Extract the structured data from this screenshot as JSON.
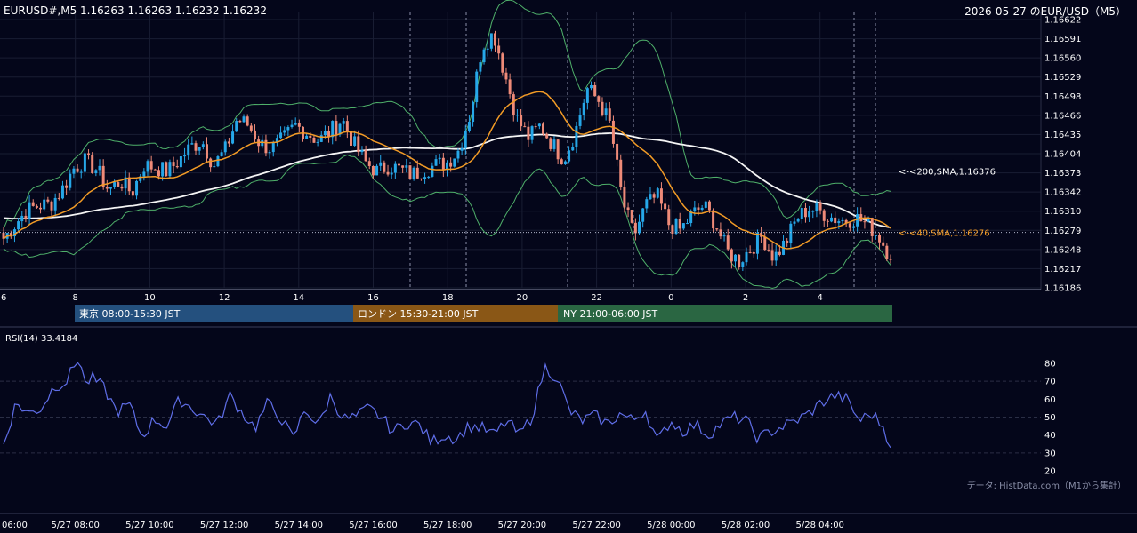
{
  "header": {
    "symbol_info": "EURUSD#,M5 1.16263 1.16263 1.16232 1.16232",
    "title_right": "2026-05-27 のEUR/USD（M5）"
  },
  "colors": {
    "background": "#04061a",
    "bull": "#26a7e8",
    "bear": "#ee8a78",
    "sma40": "#f29b26",
    "sma200": "#f4f4f4",
    "bollinger": "#4fb06a",
    "rsi": "#5f6ee8",
    "session_tokyo": "#24507e",
    "session_london": "#8a5716",
    "session_ny": "#2a6642"
  },
  "price_axis": {
    "labels": [
      "1.16622",
      "1.16591",
      "1.16560",
      "1.16529",
      "1.16498",
      "1.16466",
      "1.16435",
      "1.16404",
      "1.16373",
      "1.16342",
      "1.16310",
      "1.16279",
      "1.16248",
      "1.16217",
      "1.16186"
    ]
  },
  "hour_axis": {
    "labels": [
      "6",
      "8",
      "10",
      "12",
      "14",
      "16",
      "18",
      "20",
      "22",
      "0",
      "2",
      "4"
    ]
  },
  "sessions": [
    {
      "label": "東京 08:00-15:30 JST"
    },
    {
      "label": "ロンドン 15:30-21:00 JST"
    },
    {
      "label": "NY 21:00-06:00 JST"
    }
  ],
  "indicator_labels": {
    "sma200": "<-<200,SMA,1.16376",
    "sma40": "<-<40,SMA,1.16276"
  },
  "rsi": {
    "label": "RSI(14) 33.4184",
    "axis_labels": [
      "80",
      "70",
      "60",
      "50",
      "40",
      "30",
      "20"
    ]
  },
  "source_note": "データ: HistData.com（M1から集計）",
  "time_axis": {
    "labels": [
      "06:00",
      "5/27 08:00",
      "5/27 10:00",
      "5/27 12:00",
      "5/27 14:00",
      "5/27 16:00",
      "5/27 18:00",
      "5/27 20:00",
      "5/27 22:00",
      "5/28 00:00",
      "5/28 02:00",
      "5/28 04:00"
    ]
  },
  "chart_data": {
    "type": "candlestick",
    "timeframe": "M5",
    "y_range": [
      1.16186,
      1.16622
    ],
    "rsi_range": [
      20,
      80
    ],
    "anchors_price": [
      [
        0,
        1.16266
      ],
      [
        1,
        1.1629
      ],
      [
        2,
        1.16312
      ],
      [
        3,
        1.1632
      ],
      [
        4,
        1.16322
      ],
      [
        5,
        1.16345
      ],
      [
        6,
        1.1638
      ],
      [
        7,
        1.16392
      ],
      [
        8,
        1.16378
      ],
      [
        9,
        1.16345
      ],
      [
        10,
        1.1636
      ],
      [
        11,
        1.1634
      ],
      [
        12,
        1.16385
      ],
      [
        13,
        1.16382
      ],
      [
        14,
        1.16375
      ],
      [
        15,
        1.16392
      ],
      [
        16,
        1.16415
      ],
      [
        17,
        1.16425
      ],
      [
        18,
        1.16385
      ],
      [
        19,
        1.1641
      ],
      [
        20,
        1.1646
      ],
      [
        21,
        1.1645
      ],
      [
        22,
        1.1642
      ],
      [
        23,
        1.16412
      ],
      [
        24,
        1.16428
      ],
      [
        25,
        1.1645
      ],
      [
        26,
        1.16438
      ],
      [
        27,
        1.16425
      ],
      [
        28,
        1.1644
      ],
      [
        29,
        1.1646
      ],
      [
        30,
        1.1642
      ],
      [
        31,
        1.1639
      ],
      [
        32,
        1.16375
      ],
      [
        33,
        1.16385
      ],
      [
        34,
        1.16378
      ],
      [
        35,
        1.1637
      ],
      [
        36,
        1.16378
      ],
      [
        37,
        1.16385
      ],
      [
        38,
        1.1639
      ],
      [
        39,
        1.1641
      ],
      [
        40,
        1.1647
      ],
      [
        41,
        1.1658
      ],
      [
        42,
        1.166
      ],
      [
        43,
        1.1653
      ],
      [
        44,
        1.1646
      ],
      [
        45,
        1.1643
      ],
      [
        46,
        1.1645
      ],
      [
        47,
        1.1642
      ],
      [
        48,
        1.16395
      ],
      [
        49,
        1.1644
      ],
      [
        50,
        1.1651
      ],
      [
        51,
        1.1649
      ],
      [
        52,
        1.1645
      ],
      [
        53,
        1.1633
      ],
      [
        54,
        1.1627
      ],
      [
        55,
        1.1632
      ],
      [
        56,
        1.16335
      ],
      [
        57,
        1.1629
      ],
      [
        58,
        1.1628
      ],
      [
        59,
        1.16305
      ],
      [
        60,
        1.1632
      ],
      [
        61,
        1.1629
      ],
      [
        62,
        1.16245
      ],
      [
        63,
        1.1623
      ],
      [
        64,
        1.1625
      ],
      [
        65,
        1.1627
      ],
      [
        66,
        1.16235
      ],
      [
        67,
        1.1626
      ],
      [
        68,
        1.163
      ],
      [
        69,
        1.16315
      ],
      [
        70,
        1.1631
      ],
      [
        71,
        1.163
      ],
      [
        72,
        1.16295
      ],
      [
        73,
        1.163
      ],
      [
        74,
        1.1629
      ],
      [
        75,
        1.1627
      ],
      [
        76,
        1.16236
      ]
    ],
    "anchors_rsi": [
      [
        0,
        35
      ],
      [
        2,
        58
      ],
      [
        4,
        52
      ],
      [
        6,
        55
      ],
      [
        8,
        67
      ],
      [
        10,
        70
      ],
      [
        12,
        84
      ],
      [
        13,
        68
      ],
      [
        14,
        72
      ],
      [
        16,
        66
      ],
      [
        18,
        53
      ],
      [
        20,
        57
      ],
      [
        22,
        39
      ],
      [
        24,
        49
      ],
      [
        26,
        45
      ],
      [
        28,
        60
      ],
      [
        30,
        55
      ],
      [
        32,
        50
      ],
      [
        34,
        46
      ],
      [
        36,
        62
      ],
      [
        38,
        52
      ],
      [
        40,
        44
      ],
      [
        42,
        58
      ],
      [
        44,
        50
      ],
      [
        46,
        38
      ],
      [
        48,
        55
      ],
      [
        50,
        45
      ],
      [
        52,
        62
      ],
      [
        54,
        49
      ],
      [
        56,
        50
      ],
      [
        58,
        55
      ],
      [
        60,
        50
      ],
      [
        62,
        42
      ],
      [
        64,
        47
      ],
      [
        66,
        46
      ],
      [
        68,
        36
      ],
      [
        70,
        40
      ],
      [
        72,
        38
      ],
      [
        74,
        45
      ],
      [
        76,
        44
      ],
      [
        78,
        40
      ],
      [
        80,
        48
      ],
      [
        82,
        40
      ],
      [
        84,
        50
      ],
      [
        86,
        78
      ],
      [
        88,
        72
      ],
      [
        90,
        53
      ],
      [
        92,
        48
      ],
      [
        94,
        51
      ],
      [
        96,
        46
      ],
      [
        98,
        52
      ],
      [
        100,
        48
      ],
      [
        102,
        54
      ],
      [
        104,
        36
      ],
      [
        106,
        48
      ],
      [
        108,
        42
      ],
      [
        110,
        46
      ],
      [
        112,
        40
      ],
      [
        114,
        46
      ],
      [
        116,
        50
      ],
      [
        118,
        48
      ],
      [
        120,
        38
      ],
      [
        122,
        42
      ],
      [
        124,
        45
      ],
      [
        126,
        48
      ],
      [
        128,
        52
      ],
      [
        130,
        58
      ],
      [
        132,
        62
      ],
      [
        134,
        60
      ],
      [
        136,
        48
      ],
      [
        138,
        52
      ],
      [
        140,
        44
      ],
      [
        141,
        33
      ]
    ]
  }
}
